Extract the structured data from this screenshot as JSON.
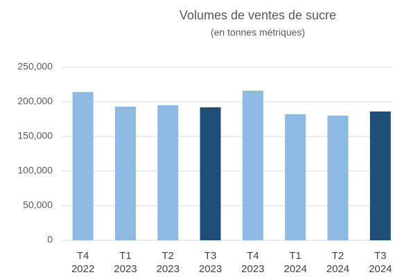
{
  "chart_data": {
    "type": "bar",
    "title": "Volumes de ventes de sucre",
    "subtitle": "(en tonnes métriques)",
    "categories": [
      "T4\n2022",
      "T1\n2023",
      "T2\n2023",
      "T3\n2023",
      "T4\n2023",
      "T1\n2024",
      "T2\n2024",
      "T3\n2024"
    ],
    "values": [
      214000,
      193000,
      195000,
      192000,
      216000,
      182000,
      180000,
      186000
    ],
    "colors": [
      "#8db9e3",
      "#8db9e3",
      "#8db9e3",
      "#1f4e79",
      "#8db9e3",
      "#8db9e3",
      "#8db9e3",
      "#1f4e79"
    ],
    "ylim": [
      0,
      250000
    ],
    "yticks": [
      0,
      {
        "value": 50000,
        "label": "50,000"
      },
      {
        "value": 100000,
        "label": "100,000"
      },
      {
        "value": 150000,
        "label": "150,000"
      },
      {
        "value": 200000,
        "label": "200,000"
      },
      {
        "value": 250000,
        "label": "250,000"
      }
    ],
    "grid": true
  }
}
